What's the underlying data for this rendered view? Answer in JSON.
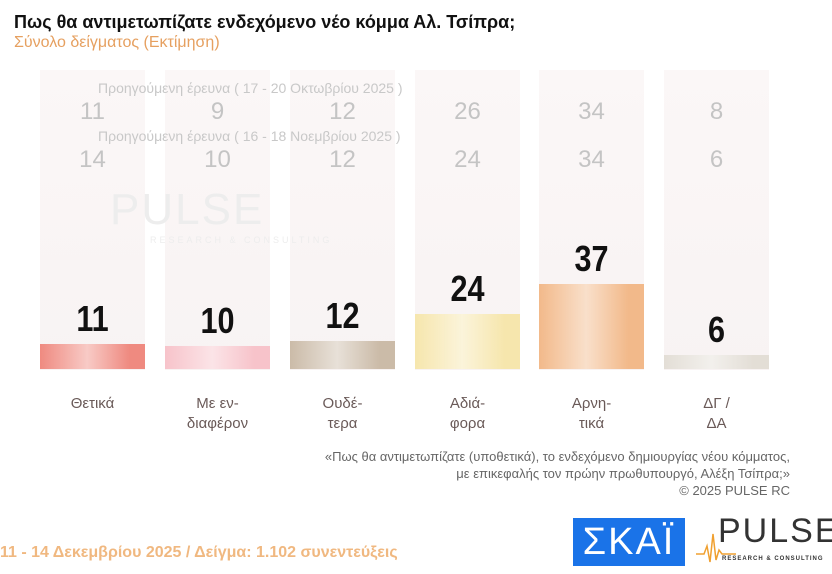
{
  "header": {
    "title": "Πως θα αντιμετωπίζατε ενδεχόμενο νέο κόμμα Αλ. Τσίπρα;",
    "subtitle": "Σύνολο δείγματος  (Εκτίμηση)"
  },
  "chart_data": {
    "type": "bar",
    "categories": [
      "Θετικά",
      "Με εν-\nδιαφέρον",
      "Ουδέ-\nτερα",
      "Αδιά-\nφορα",
      "Αρνη-\nτικά",
      "ΔΓ /\nΔΑ"
    ],
    "values": [
      11,
      10,
      12,
      24,
      37,
      6
    ],
    "previous": [
      {
        "label": "Προηγούμενη έρευνα ( 17 - 20 Οκτωβρίου 2025 )",
        "values": [
          11,
          9,
          12,
          26,
          34,
          8
        ]
      },
      {
        "label": "Προηγούμενη έρευνα ( 16 - 18 Νοεμβρίου 2025 )",
        "values": [
          14,
          10,
          12,
          24,
          34,
          6
        ]
      }
    ],
    "colors": [
      "#ef8a80",
      "#f7c3ca",
      "#cbbba8",
      "#f6e6ad",
      "#f2b98a",
      "#e3ded6"
    ]
  },
  "note": {
    "line1": "«Πως θα αντιμετωπίζατε (υποθετικά), το ενδεχόμενο δημιουργίας νέου κόμματος,",
    "line2": "με επικεφαλής τον πρώην πρωθυπουργό, Αλέξη Τσίπρα;»",
    "copyright": "©  2025  PULSE RC"
  },
  "footer": "11 - 14 Δεκεμβρίου 2025  /  Δείγμα:  1.102 συνεντεύξεις",
  "logos": {
    "skai": "ΣΚΑΪ",
    "pulse": "PULSE",
    "pulse_sub": "RESEARCH & CONSULTING"
  }
}
